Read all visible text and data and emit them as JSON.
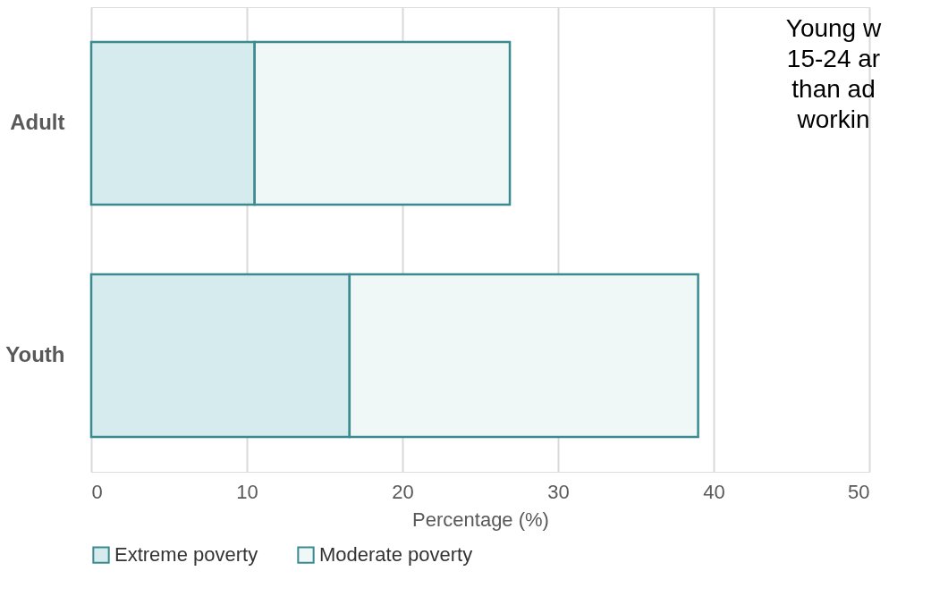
{
  "chart_data": {
    "type": "bar",
    "orientation": "horizontal",
    "stacked": true,
    "categories": [
      "Adult",
      "Youth"
    ],
    "series": [
      {
        "name": "Extreme poverty",
        "color": "#d6ebee",
        "values": [
          10.5,
          16.6
        ]
      },
      {
        "name": "Moderate poverty",
        "color": "#eff8f7",
        "values": [
          16.4,
          22.4
        ]
      }
    ],
    "xlabel": "Percentage (%)",
    "xlim": [
      0,
      50
    ],
    "xticks": [
      0,
      10,
      20,
      30,
      40,
      50
    ],
    "grid": "x",
    "legend": "bottom",
    "annotations": [
      "Young w",
      "15-24 ar",
      "than ad",
      "workin"
    ]
  }
}
